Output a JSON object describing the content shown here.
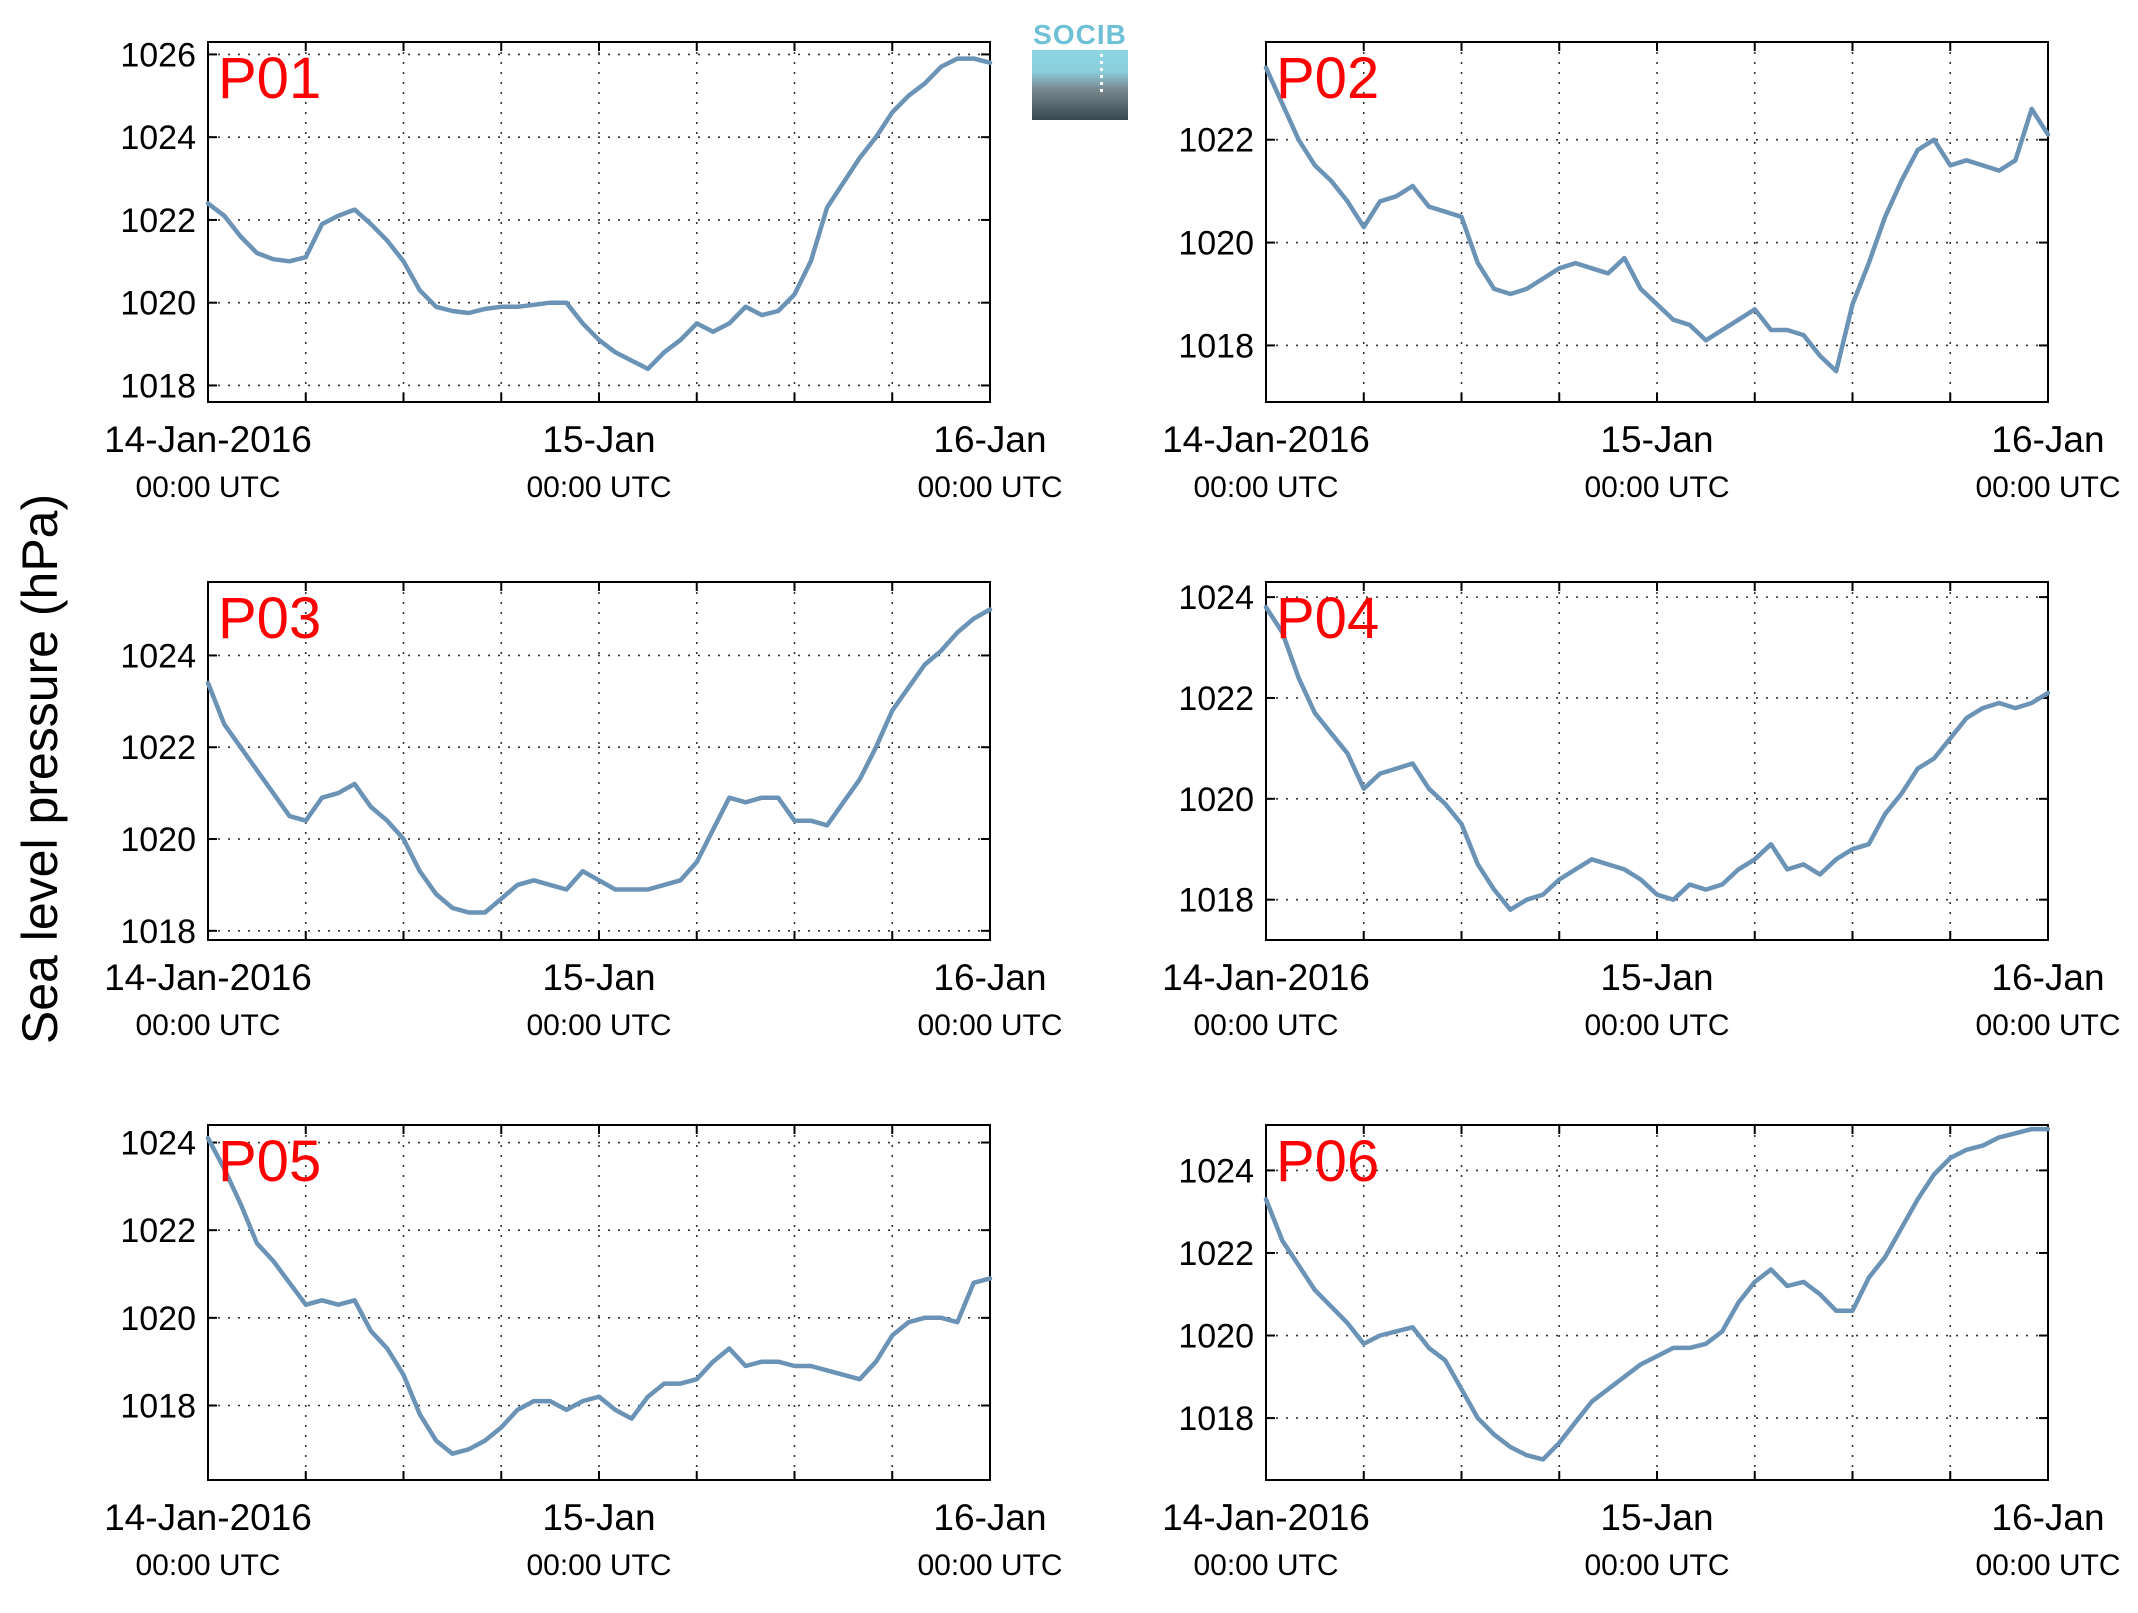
{
  "figure": {
    "ylabel": "Sea level pressure (hPa)",
    "logo_text": "SOCIB",
    "line_color": "#6a93b6",
    "panel_label_color": "#ff0000"
  },
  "chart_data": [
    {
      "type": "line",
      "label": "P01",
      "x_tick_labels": [
        [
          "14-Jan-2016",
          "00:00 UTC"
        ],
        [
          "15-Jan",
          "00:00 UTC"
        ],
        [
          "16-Jan",
          "00:00 UTC"
        ]
      ],
      "xlim_hours": [
        0,
        48
      ],
      "ylim": [
        1017.6,
        1026.3
      ],
      "yticks": [
        1018,
        1020,
        1022,
        1024,
        1026
      ],
      "x_hours": [
        0,
        1,
        2,
        3,
        4,
        5,
        6,
        7,
        8,
        9,
        10,
        11,
        12,
        13,
        14,
        15,
        16,
        17,
        18,
        19,
        20,
        21,
        22,
        23,
        24,
        25,
        26,
        27,
        28,
        29,
        30,
        31,
        32,
        33,
        34,
        35,
        36,
        37,
        38,
        39,
        40,
        41,
        42,
        43,
        44,
        45,
        46,
        47,
        48
      ],
      "y": [
        1022.4,
        1022.1,
        1021.6,
        1021.2,
        1021.05,
        1021.0,
        1021.1,
        1021.9,
        1022.1,
        1022.25,
        1021.9,
        1021.5,
        1021.0,
        1020.3,
        1019.9,
        1019.8,
        1019.75,
        1019.85,
        1019.9,
        1019.9,
        1019.95,
        1020.0,
        1020.0,
        1019.5,
        1019.1,
        1018.8,
        1018.6,
        1018.4,
        1018.8,
        1019.1,
        1019.5,
        1019.3,
        1019.5,
        1019.9,
        1019.7,
        1019.8,
        1020.2,
        1021.0,
        1022.3,
        1022.9,
        1023.5,
        1024.0,
        1024.6,
        1025.0,
        1025.3,
        1025.7,
        1025.9,
        1025.9,
        1025.8
      ]
    },
    {
      "type": "line",
      "label": "P02",
      "x_tick_labels": [
        [
          "14-Jan-2016",
          "00:00 UTC"
        ],
        [
          "15-Jan",
          "00:00 UTC"
        ],
        [
          "16-Jan",
          "00:00 UTC"
        ]
      ],
      "xlim_hours": [
        0,
        48
      ],
      "ylim": [
        1016.9,
        1023.9
      ],
      "yticks": [
        1018,
        1020,
        1022
      ],
      "x_hours": [
        0,
        1,
        2,
        3,
        4,
        5,
        6,
        7,
        8,
        9,
        10,
        11,
        12,
        13,
        14,
        15,
        16,
        17,
        18,
        19,
        20,
        21,
        22,
        23,
        24,
        25,
        26,
        27,
        28,
        29,
        30,
        31,
        32,
        33,
        34,
        35,
        36,
        37,
        38,
        39,
        40,
        41,
        42,
        43,
        44,
        45,
        46,
        47,
        48
      ],
      "y": [
        1023.4,
        1022.7,
        1022.0,
        1021.5,
        1021.2,
        1020.8,
        1020.3,
        1020.8,
        1020.9,
        1021.1,
        1020.7,
        1020.6,
        1020.5,
        1019.6,
        1019.1,
        1019.0,
        1019.1,
        1019.3,
        1019.5,
        1019.6,
        1019.5,
        1019.4,
        1019.7,
        1019.1,
        1018.8,
        1018.5,
        1018.4,
        1018.1,
        1018.3,
        1018.5,
        1018.7,
        1018.3,
        1018.3,
        1018.2,
        1017.8,
        1017.5,
        1018.8,
        1019.6,
        1020.5,
        1021.2,
        1021.8,
        1022.0,
        1021.5,
        1021.6,
        1021.5,
        1021.4,
        1021.6,
        1022.6,
        1022.1
      ]
    },
    {
      "type": "line",
      "label": "P03",
      "x_tick_labels": [
        [
          "14-Jan-2016",
          "00:00 UTC"
        ],
        [
          "15-Jan",
          "00:00 UTC"
        ],
        [
          "16-Jan",
          "00:00 UTC"
        ]
      ],
      "xlim_hours": [
        0,
        48
      ],
      "ylim": [
        1017.8,
        1025.6
      ],
      "yticks": [
        1018,
        1020,
        1022,
        1024
      ],
      "x_hours": [
        0,
        1,
        2,
        3,
        4,
        5,
        6,
        7,
        8,
        9,
        10,
        11,
        12,
        13,
        14,
        15,
        16,
        17,
        18,
        19,
        20,
        21,
        22,
        23,
        24,
        25,
        26,
        27,
        28,
        29,
        30,
        31,
        32,
        33,
        34,
        35,
        36,
        37,
        38,
        39,
        40,
        41,
        42,
        43,
        44,
        45,
        46,
        47,
        48
      ],
      "y": [
        1023.4,
        1022.5,
        1022.0,
        1021.5,
        1021.0,
        1020.5,
        1020.4,
        1020.9,
        1021.0,
        1021.2,
        1020.7,
        1020.4,
        1020.0,
        1019.3,
        1018.8,
        1018.5,
        1018.4,
        1018.4,
        1018.7,
        1019.0,
        1019.1,
        1019.0,
        1018.9,
        1019.3,
        1019.1,
        1018.9,
        1018.9,
        1018.9,
        1019.0,
        1019.1,
        1019.5,
        1020.2,
        1020.9,
        1020.8,
        1020.9,
        1020.9,
        1020.4,
        1020.4,
        1020.3,
        1020.8,
        1021.3,
        1022.0,
        1022.8,
        1023.3,
        1023.8,
        1024.1,
        1024.5,
        1024.8,
        1025.0
      ]
    },
    {
      "type": "line",
      "label": "P04",
      "x_tick_labels": [
        [
          "14-Jan-2016",
          "00:00 UTC"
        ],
        [
          "15-Jan",
          "00:00 UTC"
        ],
        [
          "16-Jan",
          "00:00 UTC"
        ]
      ],
      "xlim_hours": [
        0,
        48
      ],
      "ylim": [
        1017.2,
        1024.3
      ],
      "yticks": [
        1018,
        1020,
        1022,
        1024
      ],
      "x_hours": [
        0,
        1,
        2,
        3,
        4,
        5,
        6,
        7,
        8,
        9,
        10,
        11,
        12,
        13,
        14,
        15,
        16,
        17,
        18,
        19,
        20,
        21,
        22,
        23,
        24,
        25,
        26,
        27,
        28,
        29,
        30,
        31,
        32,
        33,
        34,
        35,
        36,
        37,
        38,
        39,
        40,
        41,
        42,
        43,
        44,
        45,
        46,
        47,
        48
      ],
      "y": [
        1023.8,
        1023.3,
        1022.4,
        1021.7,
        1021.3,
        1020.9,
        1020.2,
        1020.5,
        1020.6,
        1020.7,
        1020.2,
        1019.9,
        1019.5,
        1018.7,
        1018.2,
        1017.8,
        1018.0,
        1018.1,
        1018.4,
        1018.6,
        1018.8,
        1018.7,
        1018.6,
        1018.4,
        1018.1,
        1018.0,
        1018.3,
        1018.2,
        1018.3,
        1018.6,
        1018.8,
        1019.1,
        1018.6,
        1018.7,
        1018.5,
        1018.8,
        1019.0,
        1019.1,
        1019.7,
        1020.1,
        1020.6,
        1020.8,
        1021.2,
        1021.6,
        1021.8,
        1021.9,
        1021.8,
        1021.9,
        1022.1
      ]
    },
    {
      "type": "line",
      "label": "P05",
      "x_tick_labels": [
        [
          "14-Jan-2016",
          "00:00 UTC"
        ],
        [
          "15-Jan",
          "00:00 UTC"
        ],
        [
          "16-Jan",
          "00:00 UTC"
        ]
      ],
      "xlim_hours": [
        0,
        48
      ],
      "ylim": [
        1016.3,
        1024.4
      ],
      "yticks": [
        1018,
        1020,
        1022,
        1024
      ],
      "x_hours": [
        0,
        1,
        2,
        3,
        4,
        5,
        6,
        7,
        8,
        9,
        10,
        11,
        12,
        13,
        14,
        15,
        16,
        17,
        18,
        19,
        20,
        21,
        22,
        23,
        24,
        25,
        26,
        27,
        28,
        29,
        30,
        31,
        32,
        33,
        34,
        35,
        36,
        37,
        38,
        39,
        40,
        41,
        42,
        43,
        44,
        45,
        46,
        47,
        48
      ],
      "y": [
        1024.1,
        1023.4,
        1022.6,
        1021.7,
        1021.3,
        1020.8,
        1020.3,
        1020.4,
        1020.3,
        1020.4,
        1019.7,
        1019.3,
        1018.7,
        1017.8,
        1017.2,
        1016.9,
        1017.0,
        1017.2,
        1017.5,
        1017.9,
        1018.1,
        1018.1,
        1017.9,
        1018.1,
        1018.2,
        1017.9,
        1017.7,
        1018.2,
        1018.5,
        1018.5,
        1018.6,
        1019.0,
        1019.3,
        1018.9,
        1019.0,
        1019.0,
        1018.9,
        1018.9,
        1018.8,
        1018.7,
        1018.6,
        1019.0,
        1019.6,
        1019.9,
        1020.0,
        1020.0,
        1019.9,
        1020.8,
        1020.9
      ]
    },
    {
      "type": "line",
      "label": "P06",
      "x_tick_labels": [
        [
          "14-Jan-2016",
          "00:00 UTC"
        ],
        [
          "15-Jan",
          "00:00 UTC"
        ],
        [
          "16-Jan",
          "00:00 UTC"
        ]
      ],
      "xlim_hours": [
        0,
        48
      ],
      "ylim": [
        1016.5,
        1025.1
      ],
      "yticks": [
        1018,
        1020,
        1022,
        1024
      ],
      "x_hours": [
        0,
        1,
        2,
        3,
        4,
        5,
        6,
        7,
        8,
        9,
        10,
        11,
        12,
        13,
        14,
        15,
        16,
        17,
        18,
        19,
        20,
        21,
        22,
        23,
        24,
        25,
        26,
        27,
        28,
        29,
        30,
        31,
        32,
        33,
        34,
        35,
        36,
        37,
        38,
        39,
        40,
        41,
        42,
        43,
        44,
        45,
        46,
        47,
        48
      ],
      "y": [
        1023.3,
        1022.3,
        1021.7,
        1021.1,
        1020.7,
        1020.3,
        1019.8,
        1020.0,
        1020.1,
        1020.2,
        1019.7,
        1019.4,
        1018.7,
        1018.0,
        1017.6,
        1017.3,
        1017.1,
        1017.0,
        1017.4,
        1017.9,
        1018.4,
        1018.7,
        1019.0,
        1019.3,
        1019.5,
        1019.7,
        1019.7,
        1019.8,
        1020.1,
        1020.8,
        1021.3,
        1021.6,
        1021.2,
        1021.3,
        1021.0,
        1020.6,
        1020.6,
        1021.4,
        1021.9,
        1022.6,
        1023.3,
        1023.9,
        1024.3,
        1024.5,
        1024.6,
        1024.8,
        1024.9,
        1025.0,
        1025.0
      ]
    }
  ]
}
